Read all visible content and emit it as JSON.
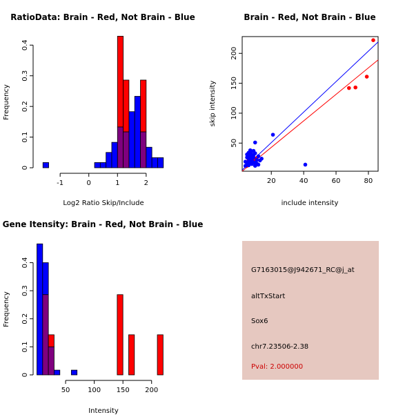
{
  "colors": {
    "red": "#ff0000",
    "blue": "#0000ff",
    "overlap": "#7f007f",
    "info_bg": "#e6c8c0",
    "pval": "#cc0000"
  },
  "chart_data": [
    {
      "type": "histogram",
      "title": "RatioData: Brain - Red, Not Brain - Blue",
      "xlabel": "Log2 Ratio Skip/Include",
      "ylabel": "Frequency",
      "xlim": [
        -1.75,
        2.75
      ],
      "ylim": [
        0,
        0.43
      ],
      "xticks": [
        -1,
        0,
        1,
        2
      ],
      "yticks": [
        0,
        0.1,
        0.2,
        0.3,
        0.4
      ],
      "bin_width": 0.2,
      "series": [
        {
          "name": "Not Brain",
          "color": "blue",
          "bins": [
            {
              "x0": -1.6,
              "y": 0.017
            },
            {
              "x0": 0.2,
              "y": 0.017
            },
            {
              "x0": 0.4,
              "y": 0.017
            },
            {
              "x0": 0.6,
              "y": 0.05
            },
            {
              "x0": 0.8,
              "y": 0.083
            },
            {
              "x0": 1.0,
              "y": 0.133
            },
            {
              "x0": 1.2,
              "y": 0.117
            },
            {
              "x0": 1.4,
              "y": 0.183
            },
            {
              "x0": 1.6,
              "y": 0.233
            },
            {
              "x0": 1.8,
              "y": 0.117
            },
            {
              "x0": 2.0,
              "y": 0.067
            },
            {
              "x0": 2.2,
              "y": 0.033
            },
            {
              "x0": 2.4,
              "y": 0.033
            }
          ]
        },
        {
          "name": "Brain",
          "color": "red",
          "bins": [
            {
              "x0": 1.0,
              "y": 0.429
            },
            {
              "x0": 1.2,
              "y": 0.286
            },
            {
              "x0": 1.8,
              "y": 0.286
            }
          ]
        }
      ]
    },
    {
      "type": "scatter",
      "title": "Brain - Red, Not Brain - Blue",
      "xlabel": "include intensity",
      "ylabel": "skip intensity",
      "xlim": [
        2,
        86
      ],
      "ylim": [
        3,
        228
      ],
      "xticks": [
        20,
        40,
        60,
        80
      ],
      "yticks": [
        50,
        100,
        150,
        200
      ],
      "series": [
        {
          "name": "Brain",
          "color": "red",
          "points": [
            [
              83,
              222
            ],
            [
              79,
              161
            ],
            [
              72,
              143
            ],
            [
              68,
              142
            ],
            [
              6,
              15
            ],
            [
              7,
              20
            ],
            [
              9,
              22
            ],
            [
              5,
              12
            ],
            [
              8,
              18
            ],
            [
              11,
              25
            ],
            [
              6,
              22
            ]
          ]
        },
        {
          "name": "Not Brain",
          "color": "blue",
          "points": [
            [
              21,
              64
            ],
            [
              41,
              14
            ],
            [
              10,
              51
            ],
            [
              5,
              18
            ],
            [
              6,
              24
            ],
            [
              7,
              20
            ],
            [
              8,
              30
            ],
            [
              9,
              26
            ],
            [
              10,
              17
            ],
            [
              11,
              22
            ],
            [
              12,
              28
            ],
            [
              14,
              24
            ],
            [
              6,
              34
            ],
            [
              7,
              38
            ],
            [
              8,
              15
            ],
            [
              9,
              37
            ],
            [
              10,
              12
            ],
            [
              5,
              26
            ],
            [
              4,
              12
            ],
            [
              5,
              16
            ],
            [
              6,
              28
            ],
            [
              7,
              32
            ],
            [
              8,
              22
            ],
            [
              9,
              18
            ],
            [
              10,
              33
            ],
            [
              11,
              16
            ],
            [
              13,
              21
            ],
            [
              6,
              13
            ],
            [
              7,
              26
            ],
            [
              8,
              36
            ],
            [
              5,
              31
            ],
            [
              6,
              19
            ],
            [
              12,
              14
            ],
            [
              9,
              30
            ],
            [
              4,
              19
            ],
            [
              7,
              16
            ]
          ]
        }
      ],
      "fit_lines": [
        {
          "name": "Not Brain fit",
          "color": "blue",
          "from": [
            2,
            5
          ],
          "to": [
            86,
            219
          ]
        },
        {
          "name": "Brain fit",
          "color": "red",
          "from": [
            2,
            3
          ],
          "to": [
            86,
            189
          ]
        }
      ]
    },
    {
      "type": "histogram",
      "title": "Gene Itensity: Brain - Red, Not Brain - Blue",
      "xlabel": "Intensity",
      "ylabel": "Frequency",
      "xlim": [
        3,
        228
      ],
      "ylim": [
        0,
        0.47
      ],
      "xticks": [
        50,
        100,
        150,
        200
      ],
      "yticks": [
        0,
        0.1,
        0.2,
        0.3,
        0.4
      ],
      "bin_width": 10,
      "series": [
        {
          "name": "Not Brain",
          "color": "blue",
          "bins": [
            {
              "x0": 0,
              "y": 0.467
            },
            {
              "x0": 10,
              "y": 0.4
            },
            {
              "x0": 20,
              "y": 0.1
            },
            {
              "x0": 30,
              "y": 0.017
            },
            {
              "x0": 60,
              "y": 0.017
            }
          ]
        },
        {
          "name": "Brain",
          "color": "red",
          "bins": [
            {
              "x0": 10,
              "y": 0.286
            },
            {
              "x0": 20,
              "y": 0.143
            },
            {
              "x0": 140,
              "y": 0.286
            },
            {
              "x0": 160,
              "y": 0.143
            },
            {
              "x0": 210,
              "y": 0.143
            }
          ]
        }
      ]
    }
  ],
  "info": {
    "probe": "G7163015@J942671_RC@j_at",
    "event": "altTxStart",
    "gene": "Sox6",
    "location": "chr7.23506-2.38",
    "pval": "Pval: 2.000000"
  }
}
